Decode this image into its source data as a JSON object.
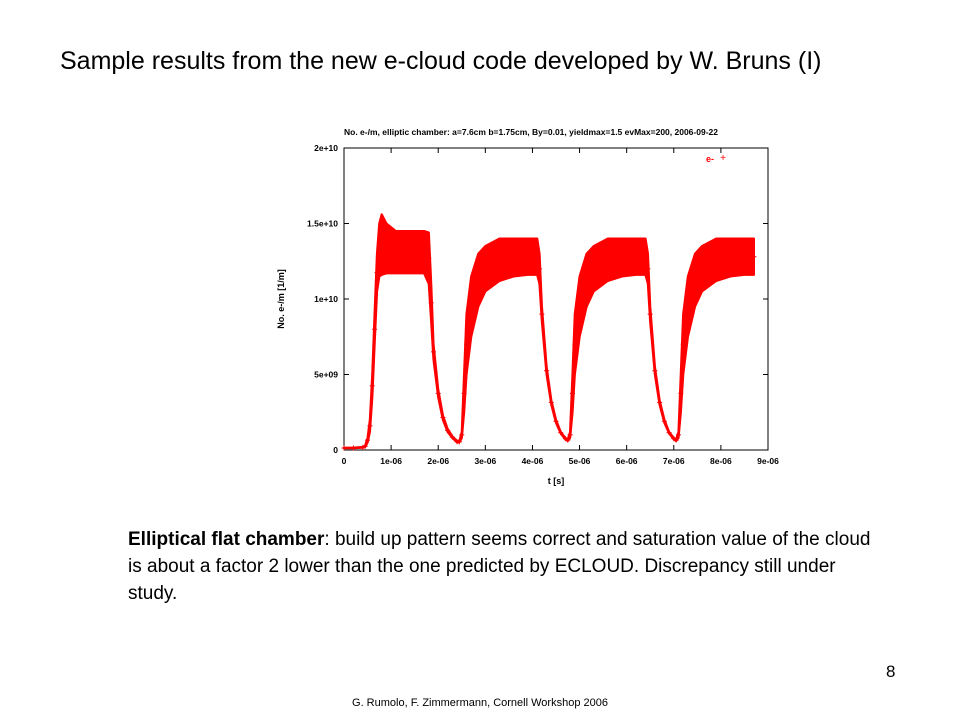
{
  "slide": {
    "title": "Sample results from the new e-cloud code developed by W. Bruns (I)",
    "caption_bold": "Elliptical flat chamber",
    "caption_rest": ": build up pattern seems correct and saturation value of the cloud is about a factor 2 lower than the one predicted by ECLOUD. Discrepancy still under study.",
    "page_number": "8",
    "footer": "G. Rumolo, F. Zimmermann, Cornell Workshop 2006"
  },
  "colors": {
    "series": "#ff0000",
    "axis": "#000000",
    "background": "#ffffff"
  },
  "chart_data": {
    "type": "scatter",
    "title": "No. e-/m, elliptic chamber: a=7.6cm b=1.75cm, By=0.01, yieldmax=1.5 evMax=200, 2006-09-22",
    "xlabel": "t [s]",
    "ylabel": "No. e-/m [1/m]",
    "xlim": [
      0,
      9e-06
    ],
    "ylim": [
      0,
      20000000000.0
    ],
    "xticks": [
      0,
      1e-06,
      2e-06,
      3e-06,
      4e-06,
      5e-06,
      6e-06,
      7e-06,
      8e-06,
      9e-06
    ],
    "xtick_labels": [
      "0",
      "1e-06",
      "2e-06",
      "3e-06",
      "4e-06",
      "5e-06",
      "6e-06",
      "7e-06",
      "8e-06",
      "9e-06"
    ],
    "yticks": [
      0,
      5000000000.0,
      10000000000.0,
      15000000000.0,
      20000000000.0
    ],
    "ytick_labels": [
      "0",
      "5e+09",
      "1e+10",
      "1.5e+10",
      "2e+10"
    ],
    "grid": false,
    "legend": {
      "position": "top-right",
      "entries": [
        "e-"
      ]
    },
    "series": [
      {
        "name": "e-",
        "marker": "+",
        "x": [
          0,
          2e-07,
          4e-07,
          4.5e-07,
          5e-07,
          5.5e-07,
          6e-07,
          6.5e-07,
          7e-07,
          7.5e-07,
          8e-07,
          9e-07,
          1.1e-06,
          1.3e-06,
          1.5e-06,
          1.7e-06,
          1.8e-06,
          1.85e-06,
          1.9e-06,
          2e-06,
          2.1e-06,
          2.2e-06,
          2.3e-06,
          2.4e-06,
          2.45e-06,
          2.5e-06,
          2.55e-06,
          2.6e-06,
          2.7e-06,
          2.85e-06,
          3e-06,
          3.3e-06,
          3.6e-06,
          3.9e-06,
          4.1e-06,
          4.15e-06,
          4.2e-06,
          4.3e-06,
          4.4e-06,
          4.5e-06,
          4.6e-06,
          4.7e-06,
          4.75e-06,
          4.8e-06,
          4.85e-06,
          4.9e-06,
          5e-06,
          5.15e-06,
          5.3e-06,
          5.6e-06,
          5.9e-06,
          6.2e-06,
          6.4e-06,
          6.45e-06,
          6.5e-06,
          6.6e-06,
          6.7e-06,
          6.8e-06,
          6.9e-06,
          7e-06,
          7.05e-06,
          7.1e-06,
          7.15e-06,
          7.2e-06,
          7.3e-06,
          7.45e-06,
          7.6e-06,
          7.9e-06,
          8.2e-06,
          8.5e-06,
          8.7e-06
        ],
        "y_low": [
          120000000.0,
          120000000.0,
          150000000.0,
          200000000.0,
          500000000.0,
          1200000000.0,
          3500000000.0,
          7000000000.0,
          10500000000.0,
          11500000000.0,
          11600000000.0,
          11700000000.0,
          11700000000.0,
          11700000000.0,
          11700000000.0,
          11700000000.0,
          11000000000.0,
          8500000000.0,
          6000000000.0,
          3500000000.0,
          2000000000.0,
          1200000000.0,
          800000000.0,
          500000000.0,
          500000000.0,
          800000000.0,
          2500000000.0,
          5000000000.0,
          7500000000.0,
          9500000000.0,
          10500000000.0,
          11200000000.0,
          11500000000.0,
          11600000000.0,
          11600000000.0,
          11000000000.0,
          8500000000.0,
          5000000000.0,
          3000000000.0,
          1800000000.0,
          1100000000.0,
          700000000.0,
          600000000.0,
          800000000.0,
          2500000000.0,
          5000000000.0,
          7500000000.0,
          9500000000.0,
          10500000000.0,
          11200000000.0,
          11500000000.0,
          11600000000.0,
          11600000000.0,
          11000000000.0,
          8500000000.0,
          5000000000.0,
          3000000000.0,
          1800000000.0,
          1100000000.0,
          700000000.0,
          600000000.0,
          800000000.0,
          2500000000.0,
          5000000000.0,
          7500000000.0,
          9500000000.0,
          10500000000.0,
          11200000000.0,
          11500000000.0,
          11600000000.0,
          11600000000.0
        ],
        "y_high": [
          150000000.0,
          150000000.0,
          200000000.0,
          300000000.0,
          800000000.0,
          2000000000.0,
          5000000000.0,
          9000000000.0,
          13000000000.0,
          15000000000.0,
          15600000000.0,
          15000000000.0,
          14500000000.0,
          14500000000.0,
          14500000000.0,
          14500000000.0,
          14400000000.0,
          11000000000.0,
          7000000000.0,
          4000000000.0,
          2300000000.0,
          1400000000.0,
          900000000.0,
          600000000.0,
          600000000.0,
          1200000000.0,
          5000000000.0,
          9000000000.0,
          11500000000.0,
          13000000000.0,
          13500000000.0,
          14000000000.0,
          14000000000.0,
          14000000000.0,
          14000000000.0,
          13000000000.0,
          9500000000.0,
          5500000000.0,
          3300000000.0,
          2000000000.0,
          1200000000.0,
          800000000.0,
          700000000.0,
          1200000000.0,
          5000000000.0,
          9000000000.0,
          11500000000.0,
          13000000000.0,
          13500000000.0,
          14000000000.0,
          14000000000.0,
          14000000000.0,
          14000000000.0,
          13000000000.0,
          9500000000.0,
          5500000000.0,
          3300000000.0,
          2000000000.0,
          1200000000.0,
          800000000.0,
          700000000.0,
          1200000000.0,
          5000000000.0,
          9000000000.0,
          11500000000.0,
          13000000000.0,
          13500000000.0,
          14000000000.0,
          14000000000.0,
          14000000000.0,
          14000000000.0
        ]
      }
    ]
  }
}
